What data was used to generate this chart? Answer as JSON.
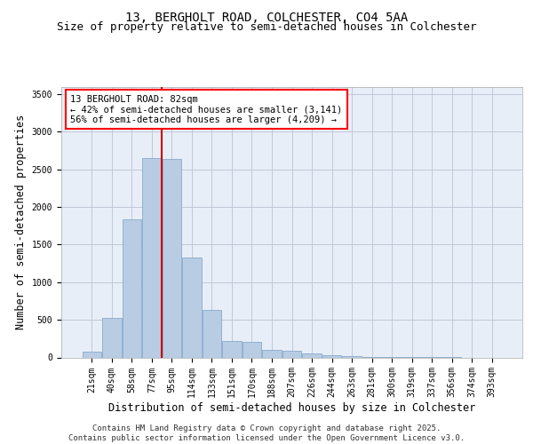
{
  "title1": "13, BERGHOLT ROAD, COLCHESTER, CO4 5AA",
  "title2": "Size of property relative to semi-detached houses in Colchester",
  "xlabel": "Distribution of semi-detached houses by size in Colchester",
  "ylabel": "Number of semi-detached properties",
  "footer1": "Contains HM Land Registry data © Crown copyright and database right 2025.",
  "footer2": "Contains public sector information licensed under the Open Government Licence v3.0.",
  "categories": [
    "21sqm",
    "40sqm",
    "58sqm",
    "77sqm",
    "95sqm",
    "114sqm",
    "133sqm",
    "151sqm",
    "170sqm",
    "188sqm",
    "207sqm",
    "226sqm",
    "244sqm",
    "263sqm",
    "281sqm",
    "300sqm",
    "319sqm",
    "337sqm",
    "356sqm",
    "374sqm",
    "393sqm"
  ],
  "values": [
    75,
    530,
    1840,
    2650,
    2640,
    1330,
    630,
    215,
    205,
    95,
    85,
    50,
    28,
    14,
    9,
    4,
    2,
    1,
    1,
    0,
    0
  ],
  "bar_color": "#b8cce4",
  "bar_edge_color": "#7aa0c4",
  "annotation_text": "13 BERGHOLT ROAD: 82sqm\n← 42% of semi-detached houses are smaller (3,141)\n56% of semi-detached houses are larger (4,209) →",
  "vline_color": "#cc0000",
  "vline_x": 3.5,
  "ylim": [
    0,
    3600
  ],
  "yticks": [
    0,
    500,
    1000,
    1500,
    2000,
    2500,
    3000,
    3500
  ],
  "grid_color": "#c0c8d8",
  "bg_color": "#e8eef8",
  "title_fontsize": 10,
  "subtitle_fontsize": 9,
  "axis_fontsize": 8.5,
  "tick_fontsize": 7,
  "footer_fontsize": 6.5
}
